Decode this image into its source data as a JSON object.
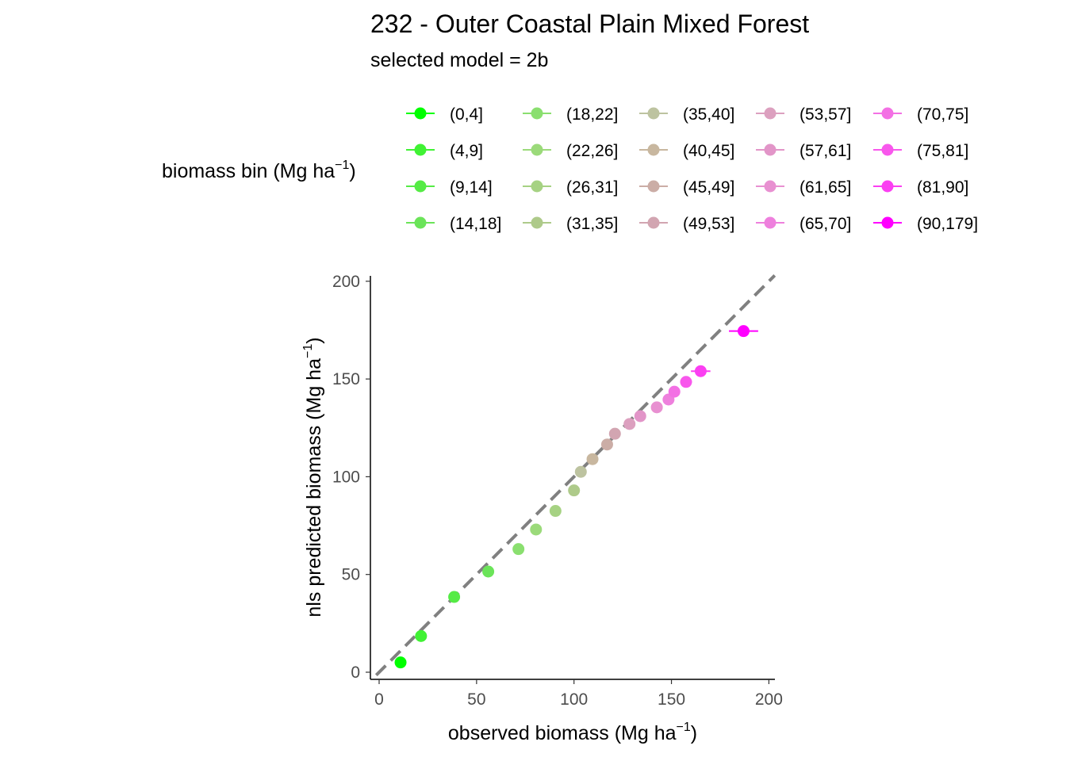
{
  "chart_data": {
    "type": "scatter",
    "title": "232 - Outer Coastal Plain Mixed Forest",
    "subtitle": "selected model = 2b",
    "xlabel": "observed biomass (Mg ha",
    "ylabel": "nls predicted biomass (Mg ha",
    "unit_exponent": "−1",
    "xlim": [
      -1.5,
      203
    ],
    "ylim": [
      -3,
      203
    ],
    "x_ticks": [
      0,
      50,
      100,
      150,
      200
    ],
    "y_ticks": [
      0,
      50,
      100,
      150,
      200
    ],
    "grid": false,
    "reference_line": {
      "type": "1:1",
      "style": "dashed",
      "color": "#808080"
    },
    "legend": {
      "title": "biomass bin (Mg ha",
      "title_exponent": "−1",
      "placement": "top"
    },
    "series": [
      {
        "name": "(0,4]",
        "color": "#00FF00",
        "x": 11.0,
        "y": 5.0,
        "xerr": 1.5
      },
      {
        "name": "(4,9]",
        "color": "#40F234",
        "x": 21.5,
        "y": 18.5,
        "xerr": 1.5
      },
      {
        "name": "(9,14]",
        "color": "#55EB45",
        "x": 38.5,
        "y": 38.5,
        "xerr": 1.5
      },
      {
        "name": "(14,18]",
        "color": "#6BE459",
        "x": 56.0,
        "y": 51.5,
        "xerr": 1.5
      },
      {
        "name": "(18,22]",
        "color": "#8ADF6F",
        "x": 71.5,
        "y": 63.0,
        "xerr": 1.5
      },
      {
        "name": "(22,26]",
        "color": "#9BDA7A",
        "x": 80.5,
        "y": 73.0,
        "xerr": 1.5
      },
      {
        "name": "(26,31]",
        "color": "#A6D283",
        "x": 90.5,
        "y": 82.5,
        "xerr": 1.5
      },
      {
        "name": "(31,35]",
        "color": "#AECA8A",
        "x": 100.0,
        "y": 93.0,
        "xerr": 1.5
      },
      {
        "name": "(35,40]",
        "color": "#BDC3A0",
        "x": 103.5,
        "y": 102.5,
        "xerr": 1.5
      },
      {
        "name": "(40,45]",
        "color": "#C8B79F",
        "x": 109.5,
        "y": 109.0,
        "xerr": 2.5
      },
      {
        "name": "(45,49]",
        "color": "#CBADA6",
        "x": 117.0,
        "y": 116.5,
        "xerr": 2.5
      },
      {
        "name": "(49,53]",
        "color": "#D2A5B1",
        "x": 121.0,
        "y": 122.0,
        "xerr": 2.5
      },
      {
        "name": "(53,57]",
        "color": "#DCA0BF",
        "x": 128.5,
        "y": 127.0,
        "xerr": 2.5
      },
      {
        "name": "(57,61]",
        "color": "#E295C8",
        "x": 134.0,
        "y": 131.0,
        "xerr": 2.5
      },
      {
        "name": "(61,65]",
        "color": "#E890D1",
        "x": 142.5,
        "y": 135.5,
        "xerr": 2.5
      },
      {
        "name": "(65,70]",
        "color": "#EE80DD",
        "x": 148.5,
        "y": 139.5,
        "xerr": 2.5
      },
      {
        "name": "(70,75]",
        "color": "#F370E4",
        "x": 151.5,
        "y": 143.5,
        "xerr": 2.5
      },
      {
        "name": "(75,81]",
        "color": "#F857EC",
        "x": 157.5,
        "y": 148.5,
        "xerr": 3.0
      },
      {
        "name": "(81,90]",
        "color": "#FB3FF2",
        "x": 165.0,
        "y": 154.0,
        "xerr": 5.0
      },
      {
        "name": "(90,179]",
        "color": "#FF00FF",
        "x": 187.0,
        "y": 174.5,
        "xerr": 7.5
      }
    ]
  }
}
